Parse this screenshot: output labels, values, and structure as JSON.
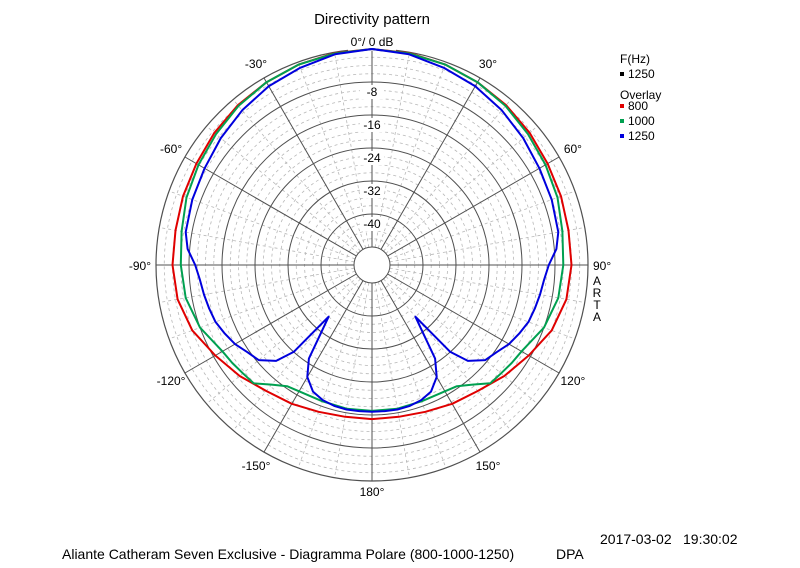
{
  "chart_data": {
    "type": "polar",
    "title": "Directivity pattern",
    "radial_unit_label": "0°/ 0 dB",
    "radial_ticks": [
      {
        "value": -8,
        "label": "-8"
      },
      {
        "value": -16,
        "label": "-16"
      },
      {
        "value": -24,
        "label": "-24"
      },
      {
        "value": -32,
        "label": "-32"
      },
      {
        "value": -40,
        "label": "-40"
      }
    ],
    "rlim": [
      -48,
      0
    ],
    "angle_labels": [
      {
        "angle": -30,
        "label": "-30°"
      },
      {
        "angle": 30,
        "label": "30°"
      },
      {
        "angle": -60,
        "label": "-60°"
      },
      {
        "angle": 60,
        "label": "60°"
      },
      {
        "angle": -90,
        "label": "-90°"
      },
      {
        "angle": 90,
        "label": "90°"
      },
      {
        "angle": -120,
        "label": "-120°"
      },
      {
        "angle": 120,
        "label": "120°"
      },
      {
        "angle": -150,
        "label": "-150°"
      },
      {
        "angle": 150,
        "label": "150°"
      },
      {
        "angle": 180,
        "label": "180°"
      }
    ],
    "grid": true,
    "legend": {
      "placement": "top-right",
      "freq_header": "F(Hz)",
      "freq_value": "1250",
      "freq_color": "#000000",
      "overlay_header": "Overlay",
      "entries": [
        {
          "label": "800",
          "color": "#e00000"
        },
        {
          "label": "1000",
          "color": "#00a050"
        },
        {
          "label": "1250",
          "color": "#0000dd"
        }
      ]
    },
    "series": [
      {
        "name": "800",
        "color": "#e00000",
        "angles": [
          0,
          10,
          20,
          30,
          40,
          50,
          60,
          70,
          80,
          90,
          100,
          110,
          120,
          130,
          140,
          150,
          160,
          170,
          180
        ],
        "values": [
          0,
          -0.2,
          -0.6,
          -1.2,
          -1.8,
          -2.5,
          -3.2,
          -3.6,
          -4,
          -4,
          -4.5,
          -6,
          -8.5,
          -10.5,
          -12.5,
          -13.5,
          -14.5,
          -15,
          -15
        ]
      },
      {
        "name": "1000",
        "color": "#00a050",
        "angles": [
          0,
          10,
          20,
          30,
          40,
          50,
          60,
          70,
          80,
          90,
          100,
          110,
          120,
          125,
          130,
          135,
          140,
          145,
          150,
          160,
          170,
          180
        ],
        "values": [
          0,
          -0.3,
          -0.6,
          -1.2,
          -2,
          -3,
          -3.8,
          -4.5,
          -5.5,
          -6,
          -6.5,
          -8,
          -10.5,
          -11,
          -11.5,
          -11.8,
          -14.5,
          -16.5,
          -17,
          -17.2,
          -17,
          -17
        ]
      },
      {
        "name": "1250",
        "color": "#0000dd",
        "angles": [
          0,
          10,
          20,
          30,
          40,
          50,
          60,
          70,
          80,
          85,
          90,
          95,
          100,
          105,
          110,
          115,
          120,
          125,
          130,
          135,
          138,
          140,
          143,
          146,
          150,
          155,
          160,
          165,
          170,
          175,
          180
        ],
        "values": [
          0,
          -0.5,
          -1.5,
          -2.3,
          -3.4,
          -4.5,
          -5.5,
          -6,
          -6.5,
          -7.5,
          -9.5,
          -10.5,
          -11,
          -11.5,
          -12,
          -13,
          -14,
          -15.5,
          -16.5,
          -19.5,
          -24,
          -36,
          -32,
          -25,
          -21,
          -18.5,
          -17.5,
          -17,
          -16.8,
          -16.8,
          -16.8
        ]
      }
    ],
    "side_label": "ARTA",
    "date": "2017-03-02",
    "time": "19:30:02",
    "footer_caption": "Aliante Catheram Seven Exclusive - Diagramma Polare (800-1000-1250)",
    "footer_tag": "DPA"
  }
}
